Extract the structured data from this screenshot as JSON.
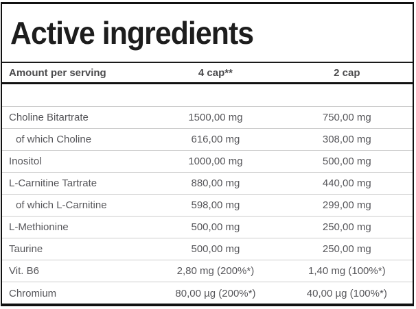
{
  "title": "Active ingredients",
  "table": {
    "headers": [
      "Amount per serving",
      "4 cap**",
      "2 cap"
    ],
    "rows": [
      {
        "ingredient": "Choline Bitartrate",
        "per_4cap": "1500,00 mg",
        "per_2cap": "750,00 mg"
      },
      {
        "ingredient": "of which Choline",
        "per_4cap": "616,00 mg",
        "per_2cap": "308,00 mg"
      },
      {
        "ingredient": "Inositol",
        "per_4cap": "1000,00 mg",
        "per_2cap": "500,00 mg"
      },
      {
        "ingredient": "L-Carnitine Tartrate",
        "per_4cap": "880,00 mg",
        "per_2cap": "440,00 mg"
      },
      {
        "ingredient": "of which L-Carnitine",
        "per_4cap": "598,00 mg",
        "per_2cap": "299,00 mg"
      },
      {
        "ingredient": "L-Methionine",
        "per_4cap": "500,00 mg",
        "per_2cap": "250,00 mg"
      },
      {
        "ingredient": "Taurine",
        "per_4cap": "500,00 mg",
        "per_2cap": "250,00 mg"
      },
      {
        "ingredient": "Vit. B6",
        "per_4cap": "2,80 mg (200%*)",
        "per_2cap": "1,40 mg (100%*)"
      },
      {
        "ingredient": "Chromium",
        "per_4cap": "80,00 µg (200%*)",
        "per_2cap": "40,00 µg (100%*)"
      }
    ]
  },
  "colors": {
    "frame_border": "#111111",
    "header_divider": "#1a1a1a",
    "row_divider": "#cbcbcb",
    "title_text": "#1d1d1d",
    "header_text": "#4a4a4c",
    "body_text": "#56565a"
  }
}
